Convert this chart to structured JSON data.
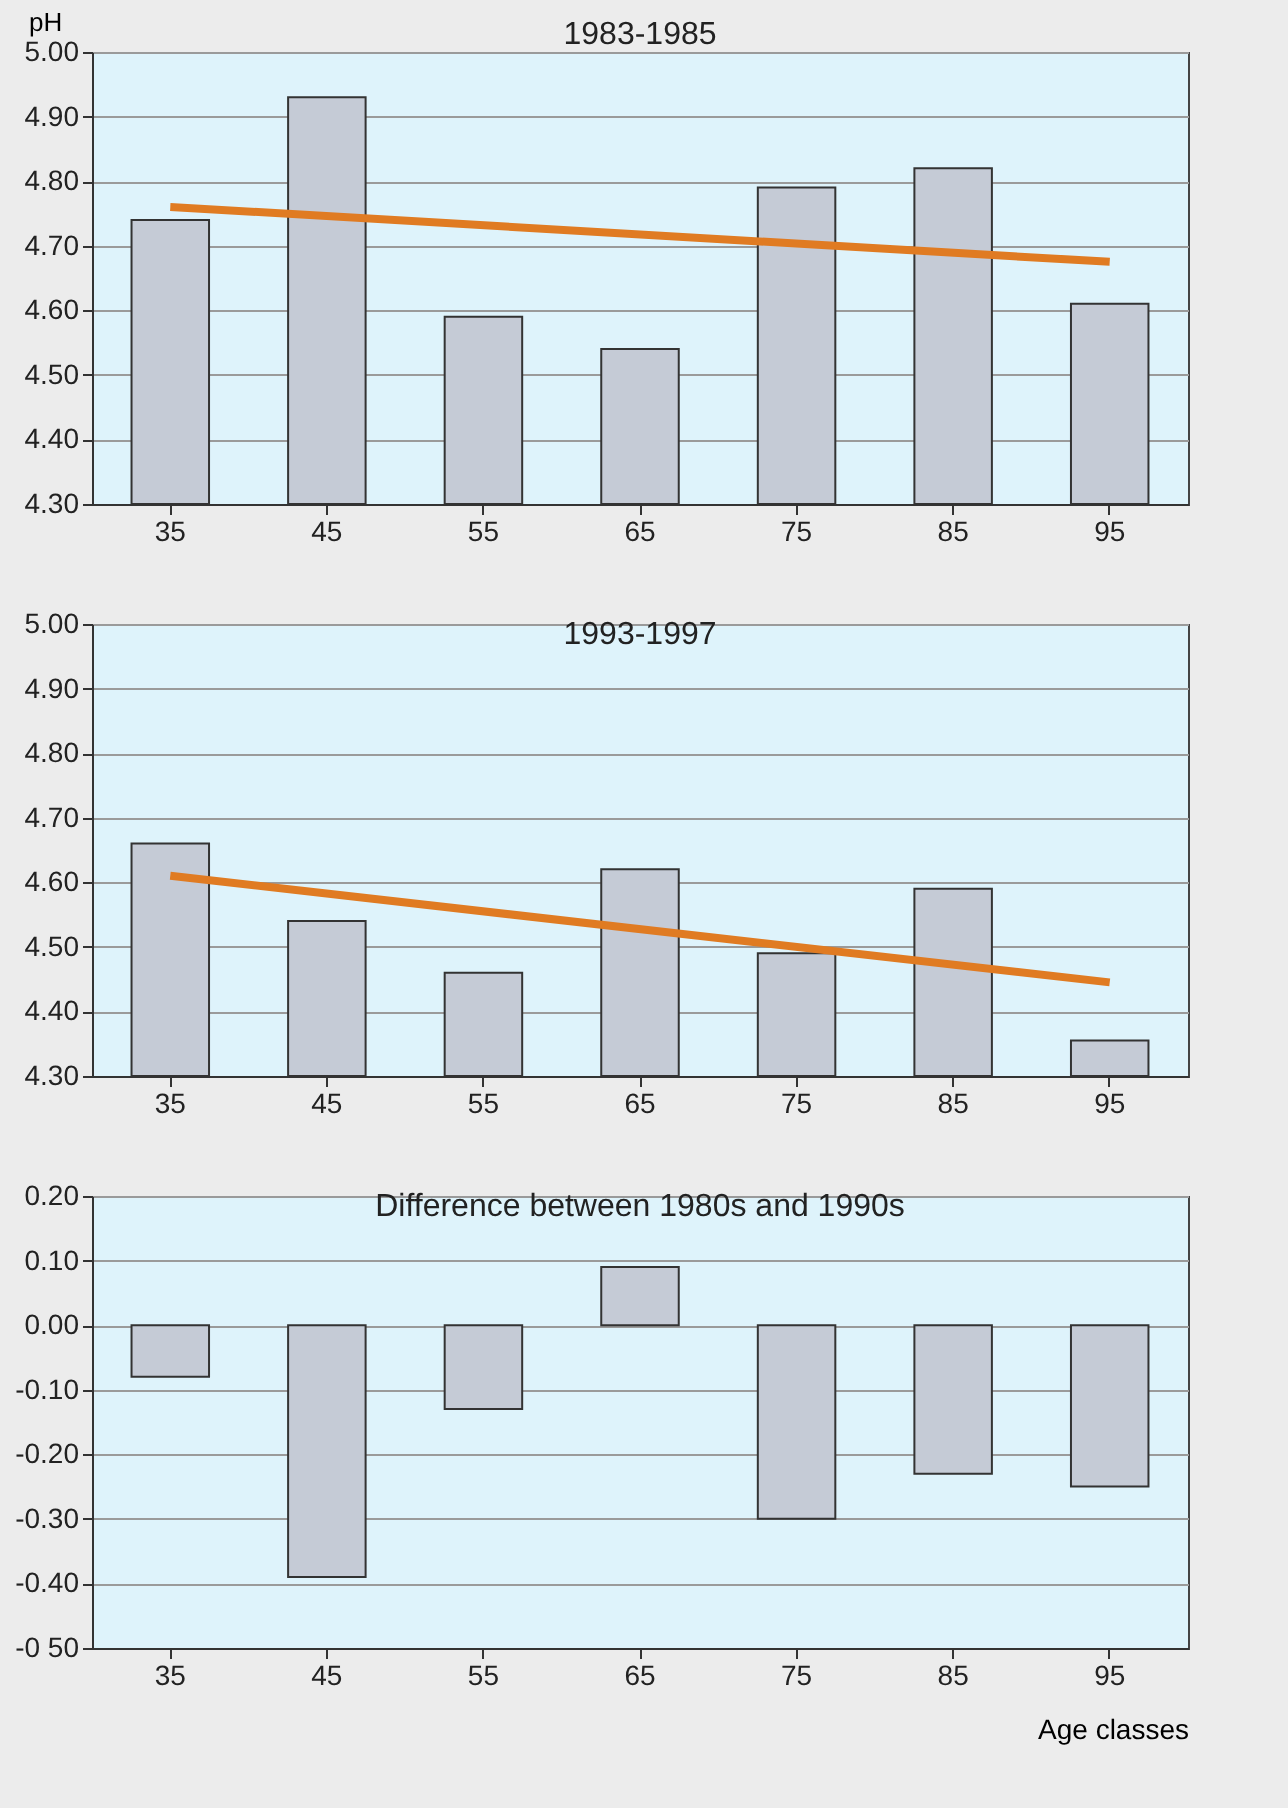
{
  "chart_data": [
    {
      "type": "bar",
      "title": "1983-1985",
      "ylabel": "pH",
      "categories": [
        "35",
        "45",
        "55",
        "65",
        "75",
        "85",
        "95"
      ],
      "ylim": [
        4.3,
        5.0
      ],
      "yticks": [
        {
          "value": 4.3,
          "label": "4.30"
        },
        {
          "value": 4.4,
          "label": "4.40"
        },
        {
          "value": 4.5,
          "label": "4.50"
        },
        {
          "value": 4.6,
          "label": "4.60"
        },
        {
          "value": 4.7,
          "label": "4.70"
        },
        {
          "value": 4.8,
          "label": "4.80"
        },
        {
          "value": 4.9,
          "label": "4.90"
        },
        {
          "value": 5.0,
          "label": "5.00"
        }
      ],
      "grid": "y",
      "series": [
        {
          "color": "#c5cbd6",
          "values": [
            4.74,
            4.93,
            4.59,
            4.54,
            4.79,
            4.82,
            4.61
          ]
        },
        {
          "type": "line",
          "color": "#e07b22",
          "x": [
            "35",
            "95"
          ],
          "values": [
            4.76,
            4.675
          ]
        }
      ]
    },
    {
      "type": "bar",
      "title": "1993-1997",
      "categories": [
        "35",
        "45",
        "55",
        "65",
        "75",
        "85",
        "95"
      ],
      "ylim": [
        4.3,
        5.0
      ],
      "yticks": [
        {
          "value": 4.3,
          "label": "4.30"
        },
        {
          "value": 4.4,
          "label": "4.40"
        },
        {
          "value": 4.5,
          "label": "4.50"
        },
        {
          "value": 4.6,
          "label": "4.60"
        },
        {
          "value": 4.7,
          "label": "4.70"
        },
        {
          "value": 4.8,
          "label": "4.80"
        },
        {
          "value": 4.9,
          "label": "4.90"
        },
        {
          "value": 5.0,
          "label": "5.00"
        }
      ],
      "grid": "y",
      "series": [
        {
          "color": "#c5cbd6",
          "values": [
            4.66,
            4.54,
            4.46,
            4.62,
            4.49,
            4.59,
            4.355
          ]
        },
        {
          "type": "line",
          "color": "#e07b22",
          "x": [
            "35",
            "95"
          ],
          "values": [
            4.61,
            4.445
          ]
        }
      ]
    },
    {
      "type": "bar",
      "title": "Difference between 1980s and 1990s",
      "xlabel": "Age classes",
      "categories": [
        "35",
        "45",
        "55",
        "65",
        "75",
        "85",
        "95"
      ],
      "ylim": [
        -0.5,
        0.2
      ],
      "yticks": [
        {
          "value": -0.5,
          "label": "-0 50"
        },
        {
          "value": -0.4,
          "label": "-0.40"
        },
        {
          "value": -0.3,
          "label": "-0.30"
        },
        {
          "value": -0.2,
          "label": "-0.20"
        },
        {
          "value": -0.1,
          "label": "-0.10"
        },
        {
          "value": 0,
          "label": "0.00"
        },
        {
          "value": 0.1,
          "label": "0.10"
        },
        {
          "value": 0.2,
          "label": "0.20"
        }
      ],
      "grid": "y",
      "series": [
        {
          "color": "#c5cbd6",
          "values": [
            -0.08,
            -0.39,
            -0.13,
            0.09,
            -0.3,
            -0.23,
            -0.25
          ]
        }
      ]
    }
  ]
}
